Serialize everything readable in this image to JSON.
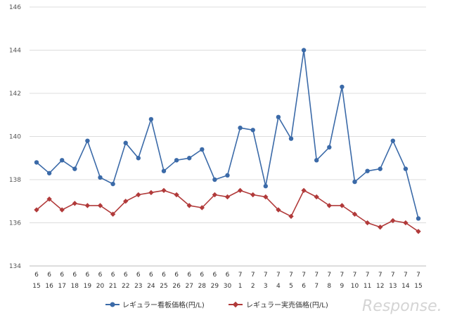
{
  "chart_data": {
    "type": "line",
    "categories": [
      [
        "6",
        "15"
      ],
      [
        "6",
        "16"
      ],
      [
        "6",
        "17"
      ],
      [
        "6",
        "18"
      ],
      [
        "6",
        "19"
      ],
      [
        "6",
        "20"
      ],
      [
        "6",
        "21"
      ],
      [
        "6",
        "22"
      ],
      [
        "6",
        "23"
      ],
      [
        "6",
        "24"
      ],
      [
        "6",
        "25"
      ],
      [
        "6",
        "26"
      ],
      [
        "6",
        "27"
      ],
      [
        "6",
        "28"
      ],
      [
        "6",
        "29"
      ],
      [
        "6",
        "30"
      ],
      [
        "7",
        "1"
      ],
      [
        "7",
        "2"
      ],
      [
        "7",
        "3"
      ],
      [
        "7",
        "4"
      ],
      [
        "7",
        "5"
      ],
      [
        "7",
        "6"
      ],
      [
        "7",
        "7"
      ],
      [
        "7",
        "8"
      ],
      [
        "7",
        "9"
      ],
      [
        "7",
        "10"
      ],
      [
        "7",
        "11"
      ],
      [
        "7",
        "12"
      ],
      [
        "7",
        "13"
      ],
      [
        "7",
        "14"
      ],
      [
        "7",
        "15"
      ]
    ],
    "series": [
      {
        "name": "レギュラー看板価格(円/L)",
        "color": "#3b6aa8",
        "marker": "circle",
        "values": [
          138.8,
          138.3,
          138.9,
          138.5,
          139.8,
          138.1,
          137.8,
          139.7,
          139.0,
          140.8,
          138.4,
          138.9,
          139.0,
          139.4,
          138.0,
          138.2,
          140.4,
          140.3,
          137.7,
          140.9,
          139.9,
          144.0,
          138.9,
          139.5,
          142.3,
          137.9,
          138.4,
          138.5,
          139.8,
          138.5,
          136.2
        ]
      },
      {
        "name": "レギュラー実売価格(円/L)",
        "color": "#b13a3a",
        "marker": "diamond",
        "values": [
          136.6,
          137.1,
          136.6,
          136.9,
          136.8,
          136.8,
          136.4,
          137.0,
          137.3,
          137.4,
          137.5,
          137.3,
          136.8,
          136.7,
          137.3,
          137.2,
          137.5,
          137.3,
          137.2,
          136.6,
          136.3,
          137.5,
          137.2,
          136.8,
          136.8,
          136.4,
          136.0,
          135.8,
          136.1,
          136.0,
          135.6
        ]
      }
    ],
    "ylim": [
      134,
      146
    ],
    "yticks": [
      134,
      136,
      138,
      140,
      142,
      144,
      146
    ],
    "grid": true,
    "legend": "bottom-center"
  },
  "watermark": "Response."
}
